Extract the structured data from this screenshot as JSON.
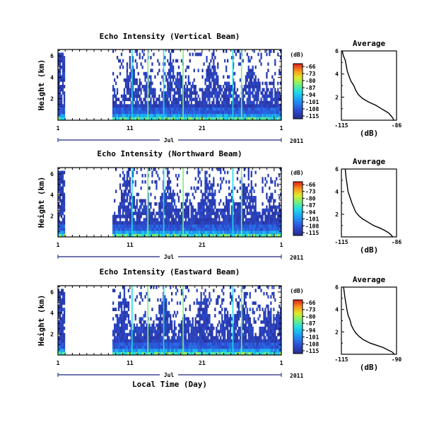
{
  "chart_data": [
    {
      "type": "heatmap",
      "title": "Echo Intensity (Vertical Beam)",
      "ylabel": "Height (km)",
      "y_ticks": [
        "6",
        "4",
        "2"
      ],
      "x_ticks": [
        "1",
        "11",
        "21",
        "1"
      ],
      "month": "Jul",
      "year": "2011",
      "colorbar": {
        "unit": "(dB)",
        "ticks": [
          "-66",
          "-73",
          "-80",
          "-87",
          "-94",
          "-101",
          "-108",
          "-115"
        ]
      },
      "average": {
        "title": "Average",
        "xlabel": "(dB)",
        "x_ticks": [
          "-115",
          "-86"
        ],
        "xlim": [
          -115,
          -86
        ],
        "y_ticks": [
          "6",
          "4",
          "2"
        ],
        "ylim": [
          0,
          6
        ],
        "profile_x": [
          -87.5,
          -88,
          -89,
          -90,
          -92,
          -94,
          -97,
          -101,
          -104,
          -106,
          -107.5,
          -108.5,
          -110,
          -111,
          -112,
          -112.5,
          -113,
          -114,
          -114.5
        ],
        "profile_y": [
          0.0,
          0.2,
          0.4,
          0.6,
          0.8,
          1.0,
          1.3,
          1.6,
          1.9,
          2.2,
          2.6,
          3.0,
          3.4,
          3.8,
          4.3,
          4.8,
          5.2,
          5.6,
          6.0
        ]
      }
    },
    {
      "type": "heatmap",
      "title": "Echo Intensity (Northward Beam)",
      "ylabel": "Height (km)",
      "y_ticks": [
        "6",
        "4",
        "2"
      ],
      "x_ticks": [
        "1",
        "11",
        "21",
        "1"
      ],
      "month": "Jul",
      "year": "2011",
      "colorbar": {
        "unit": "(dB)",
        "ticks": [
          "-66",
          "-73",
          "-80",
          "-87",
          "-94",
          "-101",
          "-108",
          "-115"
        ]
      },
      "average": {
        "title": "Average",
        "xlabel": "(dB)",
        "x_ticks": [
          "-115",
          "-86"
        ],
        "xlim": [
          -115,
          -86
        ],
        "y_ticks": [
          "6",
          "4",
          "2"
        ],
        "ylim": [
          0,
          6
        ],
        "profile_x": [
          -88,
          -89,
          -90.5,
          -92.5,
          -95,
          -98,
          -101,
          -104,
          -106,
          -107.5,
          -108.5,
          -109.5,
          -110.5,
          -111.5,
          -112,
          -112.5,
          -113
        ],
        "profile_y": [
          0.0,
          0.2,
          0.4,
          0.6,
          0.8,
          1.0,
          1.3,
          1.6,
          1.9,
          2.2,
          2.6,
          3.0,
          3.5,
          4.0,
          4.6,
          5.2,
          6.0
        ]
      }
    },
    {
      "type": "heatmap",
      "title": "Echo Intensity (Eastward Beam)",
      "ylabel": "Height (km)",
      "y_ticks": [
        "6",
        "4",
        "2"
      ],
      "x_ticks": [
        "1",
        "11",
        "21",
        "1"
      ],
      "month": "Jul",
      "year": "2011",
      "xlabel": "Local Time (Day)",
      "colorbar": {
        "unit": "(dB)",
        "ticks": [
          "-66",
          "-73",
          "-80",
          "-87",
          "-94",
          "-101",
          "-108",
          "-115"
        ]
      },
      "average": {
        "title": "Average",
        "xlabel": "(dB)",
        "x_ticks": [
          "-115",
          "-90"
        ],
        "xlim": [
          -115,
          -90
        ],
        "y_ticks": [
          "6",
          "4",
          "2"
        ],
        "ylim": [
          0,
          6
        ],
        "profile_x": [
          -91,
          -92,
          -94,
          -96,
          -99,
          -102,
          -105,
          -107,
          -108.5,
          -109.5,
          -110.5,
          -111,
          -112,
          -112.5,
          -113,
          -113.5,
          -114
        ],
        "profile_y": [
          0.0,
          0.2,
          0.4,
          0.6,
          0.8,
          1.0,
          1.3,
          1.6,
          1.9,
          2.2,
          2.6,
          3.0,
          3.5,
          4.0,
          4.6,
          5.2,
          6.0
        ]
      }
    }
  ]
}
